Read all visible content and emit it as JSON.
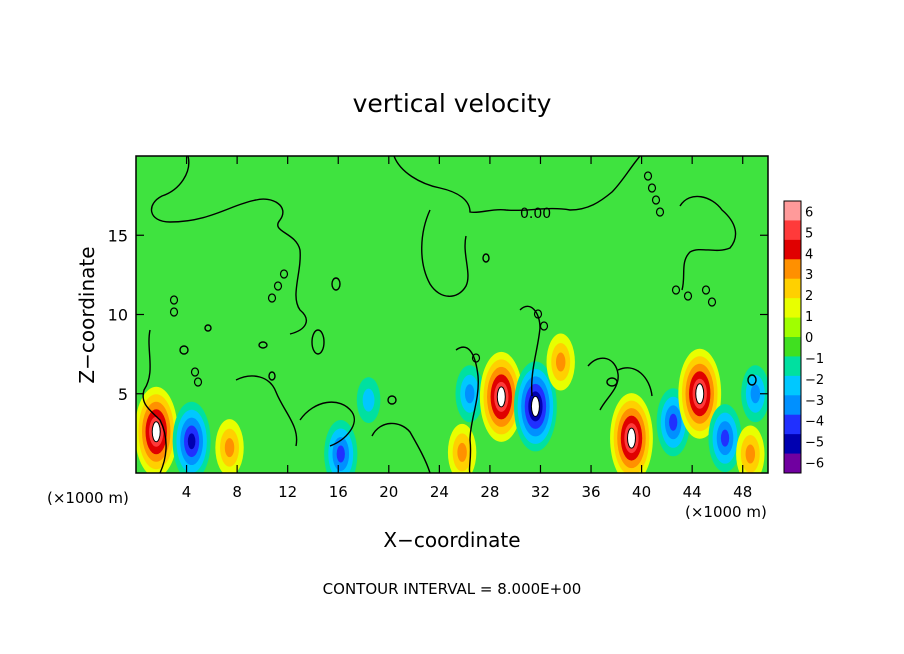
{
  "chart_data": {
    "type": "heatmap",
    "title": "vertical velocity",
    "xlabel": "X−coordinate",
    "ylabel": "Z−coordinate",
    "x_unit_left": "(×1000 m)",
    "x_unit_right": "(×1000 m)",
    "xlim": [
      0,
      50
    ],
    "ylim": [
      0,
      20
    ],
    "x_ticks": [
      4,
      8,
      12,
      16,
      20,
      24,
      28,
      32,
      36,
      40,
      44,
      48
    ],
    "y_ticks": [
      5,
      10,
      15
    ],
    "contour_label": "0.00",
    "footer": "CONTOUR INTERVAL = 8.000E+00",
    "colorbar": {
      "labels": [
        "6",
        "5",
        "4",
        "3",
        "2",
        "1",
        "0",
        "−1",
        "−2",
        "−3",
        "−4",
        "−5",
        "−6"
      ],
      "colors": [
        "#ff9a9a",
        "#ff3a3a",
        "#e00000",
        "#ff9000",
        "#ffd000",
        "#e8ff00",
        "#a0ff00",
        "#40e020",
        "#00e0a0",
        "#00c8ff",
        "#0090ff",
        "#2030ff",
        "#0000b0",
        "#7000a0"
      ]
    },
    "background_color": "#3fe33f",
    "features": [
      {
        "x": 1.6,
        "z": 2.6,
        "value": 6
      },
      {
        "x": 4.4,
        "z": 2.0,
        "value": -5
      },
      {
        "x": 7.4,
        "z": 1.6,
        "value": 3
      },
      {
        "x": 16.2,
        "z": 1.2,
        "value": -4
      },
      {
        "x": 18.4,
        "z": 4.6,
        "value": -2
      },
      {
        "x": 25.8,
        "z": 1.3,
        "value": 3
      },
      {
        "x": 26.4,
        "z": 5.0,
        "value": -3
      },
      {
        "x": 28.9,
        "z": 4.8,
        "value": 6
      },
      {
        "x": 31.6,
        "z": 4.2,
        "value": -6
      },
      {
        "x": 33.6,
        "z": 7.0,
        "value": 3
      },
      {
        "x": 39.2,
        "z": 2.2,
        "value": 6
      },
      {
        "x": 42.5,
        "z": 3.2,
        "value": -4
      },
      {
        "x": 44.6,
        "z": 5.0,
        "value": 6
      },
      {
        "x": 46.6,
        "z": 2.2,
        "value": -4
      },
      {
        "x": 48.6,
        "z": 1.2,
        "value": 3
      },
      {
        "x": 49.0,
        "z": 5.0,
        "value": -3
      }
    ]
  }
}
